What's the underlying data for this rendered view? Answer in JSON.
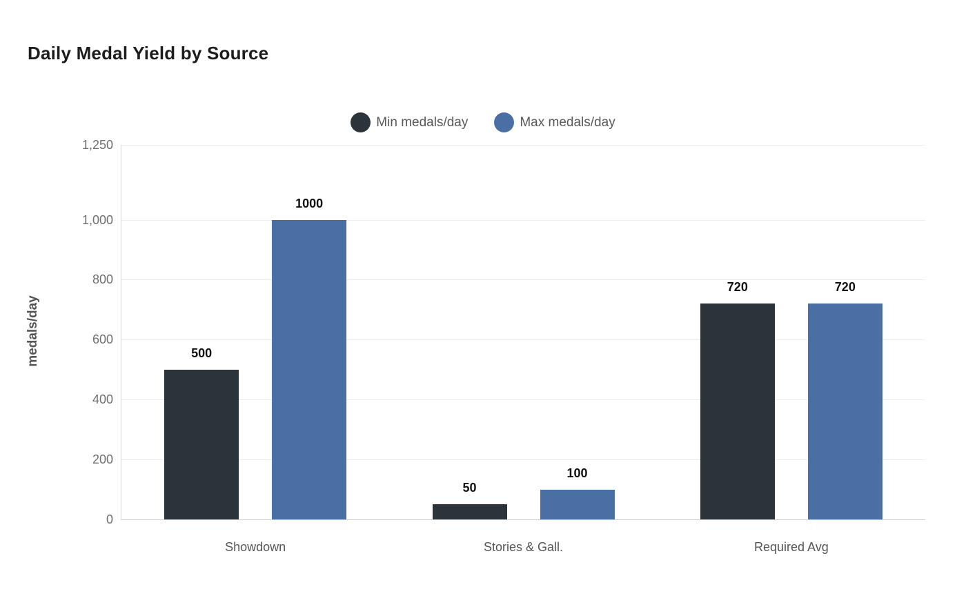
{
  "chart_data": {
    "type": "bar",
    "title": "Daily Medal Yield by Source",
    "xlabel": "",
    "ylabel": "medals/day",
    "categories": [
      "Showdown",
      "Stories & Gall.",
      "Required Avg"
    ],
    "series": [
      {
        "name": "Min medals/day",
        "color": "#2b333b",
        "values": [
          500,
          50,
          720
        ]
      },
      {
        "name": "Max medals/day",
        "color": "#4a6fa5",
        "values": [
          1000,
          100,
          720
        ]
      }
    ],
    "value_labels": [
      [
        "500",
        "50",
        "720"
      ],
      [
        "1000",
        "100",
        "720"
      ]
    ],
    "ylim": [
      0,
      1250
    ],
    "yticks": [
      {
        "value": 0,
        "label": "0"
      },
      {
        "value": 200,
        "label": "200"
      },
      {
        "value": 400,
        "label": "400"
      },
      {
        "value": 600,
        "label": "600"
      },
      {
        "value": 800,
        "label": "800"
      },
      {
        "value": 1000,
        "label": "1,000"
      },
      {
        "value": 1250,
        "label": "1,250"
      }
    ],
    "grid": true,
    "legend_position": "top-center",
    "background_color": "#ffffff"
  }
}
